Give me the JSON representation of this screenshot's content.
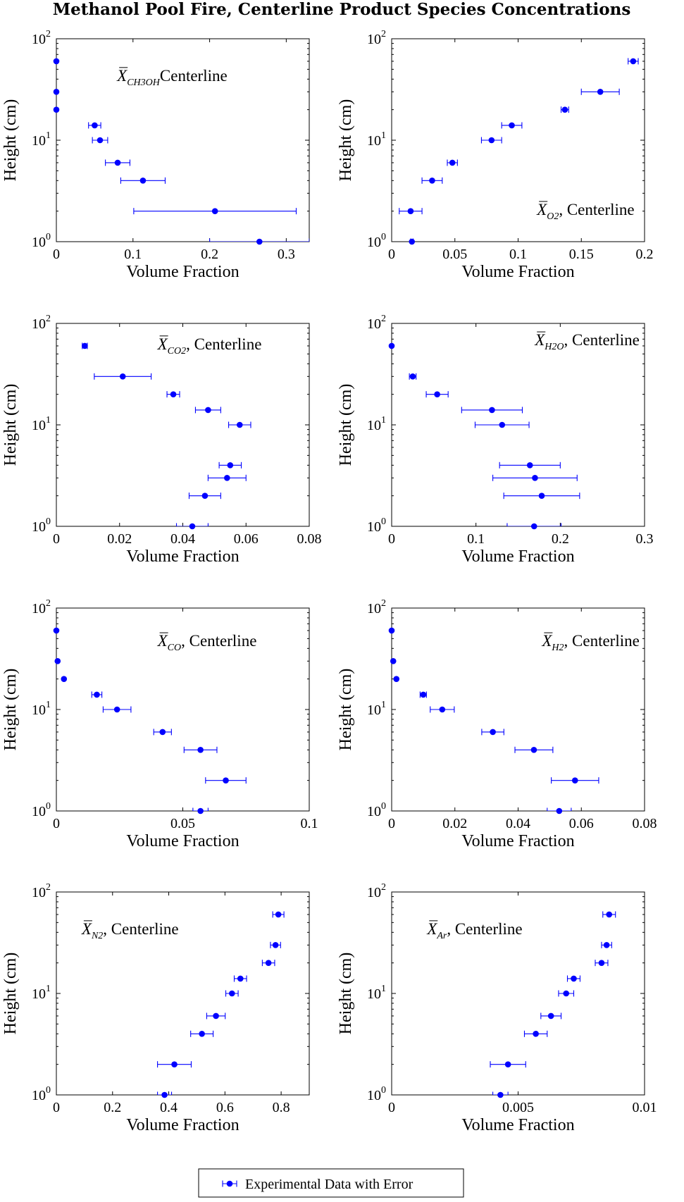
{
  "title": "Methanol Pool Fire, Centerline Product Species Concentrations",
  "legend": {
    "label": "Experimental Data with Error",
    "color": "#0000FF"
  },
  "chart_data": [
    {
      "type": "scatter",
      "annotation": {
        "sym": "X",
        "sub": "CH3OH",
        "text": "Centerline"
      },
      "xlabel": "Volume Fraction",
      "ylabel": "Height (cm)",
      "xlim": [
        0,
        0.33
      ],
      "ylim": [
        1,
        100
      ],
      "yscale": "log",
      "grid": false,
      "xticks": [
        0,
        0.1,
        0.2,
        0.3
      ],
      "xticklabels": [
        "0",
        "0.1",
        "0.2",
        "0.3"
      ],
      "points": [
        {
          "x": 0.265,
          "y": 1,
          "xerr": 0.065
        },
        {
          "x": 0.207,
          "y": 2,
          "xerr": 0.106
        },
        {
          "x": 0.113,
          "y": 4,
          "xerr": 0.029
        },
        {
          "x": 0.08,
          "y": 6,
          "xerr": 0.016
        },
        {
          "x": 0.057,
          "y": 10,
          "xerr": 0.01
        },
        {
          "x": 0.05,
          "y": 14,
          "xerr": 0.008
        },
        {
          "x": 0.0,
          "y": 20,
          "xerr": 0
        },
        {
          "x": 0.0,
          "y": 30,
          "xerr": 0
        },
        {
          "x": 0.0,
          "y": 60,
          "xerr": 0
        }
      ]
    },
    {
      "type": "scatter",
      "annotation": {
        "sym": "X",
        "sub": "O2",
        "text": ", Centerline"
      },
      "xlabel": "Volume Fraction",
      "ylabel": "Height (cm)",
      "xlim": [
        0,
        0.2
      ],
      "ylim": [
        1,
        100
      ],
      "yscale": "log",
      "grid": false,
      "xticks": [
        0,
        0.05,
        0.1,
        0.15,
        0.2
      ],
      "xticklabels": [
        "0",
        "0.05",
        "0.1",
        "0.15",
        "0.2"
      ],
      "points": [
        {
          "x": 0.016,
          "y": 1,
          "xerr": 0.001
        },
        {
          "x": 0.015,
          "y": 2,
          "xerr": 0.009
        },
        {
          "x": 0.032,
          "y": 4,
          "xerr": 0.008
        },
        {
          "x": 0.048,
          "y": 6,
          "xerr": 0.004
        },
        {
          "x": 0.079,
          "y": 10,
          "xerr": 0.008
        },
        {
          "x": 0.095,
          "y": 14,
          "xerr": 0.008
        },
        {
          "x": 0.137,
          "y": 20,
          "xerr": 0.003
        },
        {
          "x": 0.165,
          "y": 30,
          "xerr": 0.015
        },
        {
          "x": 0.191,
          "y": 60,
          "xerr": 0.004
        }
      ]
    },
    {
      "type": "scatter",
      "annotation": {
        "sym": "X",
        "sub": "CO2",
        "text": ", Centerline"
      },
      "xlabel": "Volume Fraction",
      "ylabel": "Height (cm)",
      "xlim": [
        0,
        0.08
      ],
      "ylim": [
        1,
        100
      ],
      "yscale": "log",
      "grid": false,
      "xticks": [
        0,
        0.02,
        0.04,
        0.06,
        0.08
      ],
      "xticklabels": [
        "0",
        "0.02",
        "0.04",
        "0.06",
        "0.08"
      ],
      "points": [
        {
          "x": 0.043,
          "y": 1,
          "xerr": 0.005
        },
        {
          "x": 0.047,
          "y": 2,
          "xerr": 0.005
        },
        {
          "x": 0.054,
          "y": 3,
          "xerr": 0.006
        },
        {
          "x": 0.055,
          "y": 4,
          "xerr": 0.0035
        },
        {
          "x": 0.058,
          "y": 10,
          "xerr": 0.0035
        },
        {
          "x": 0.048,
          "y": 14,
          "xerr": 0.004
        },
        {
          "x": 0.037,
          "y": 20,
          "xerr": 0.002
        },
        {
          "x": 0.021,
          "y": 30,
          "xerr": 0.009
        },
        {
          "x": 0.009,
          "y": 60,
          "xerr": 0.0008
        }
      ]
    },
    {
      "type": "scatter",
      "annotation": {
        "sym": "X",
        "sub": "H2O",
        "text": ", Centerline"
      },
      "xlabel": "Volume Fraction",
      "ylabel": "Height (cm)",
      "xlim": [
        0,
        0.3
      ],
      "ylim": [
        1,
        100
      ],
      "yscale": "log",
      "grid": false,
      "xticks": [
        0,
        0.1,
        0.2,
        0.3
      ],
      "xticklabels": [
        "0",
        "0.1",
        "0.2",
        "0.3"
      ],
      "points": [
        {
          "x": 0.169,
          "y": 1,
          "xerr": 0.032
        },
        {
          "x": 0.178,
          "y": 2,
          "xerr": 0.045
        },
        {
          "x": 0.17,
          "y": 3,
          "xerr": 0.05
        },
        {
          "x": 0.164,
          "y": 4,
          "xerr": 0.036
        },
        {
          "x": 0.131,
          "y": 10,
          "xerr": 0.032
        },
        {
          "x": 0.119,
          "y": 14,
          "xerr": 0.036
        },
        {
          "x": 0.054,
          "y": 20,
          "xerr": 0.013
        },
        {
          "x": 0.025,
          "y": 30,
          "xerr": 0.004
        },
        {
          "x": 0.0,
          "y": 60,
          "xerr": 0
        }
      ]
    },
    {
      "type": "scatter",
      "annotation": {
        "sym": "X",
        "sub": "CO",
        "text": ", Centerline"
      },
      "xlabel": "Volume Fraction",
      "ylabel": "Height (cm)",
      "xlim": [
        0,
        0.1
      ],
      "ylim": [
        1,
        100
      ],
      "yscale": "log",
      "grid": false,
      "xticks": [
        0,
        0.05,
        0.1
      ],
      "xticklabels": [
        "0",
        "0.05",
        "0.1"
      ],
      "points": [
        {
          "x": 0.057,
          "y": 1,
          "xerr": 0.003
        },
        {
          "x": 0.067,
          "y": 2,
          "xerr": 0.008
        },
        {
          "x": 0.057,
          "y": 4,
          "xerr": 0.0065
        },
        {
          "x": 0.042,
          "y": 6,
          "xerr": 0.0035
        },
        {
          "x": 0.024,
          "y": 10,
          "xerr": 0.0055
        },
        {
          "x": 0.016,
          "y": 14,
          "xerr": 0.002
        },
        {
          "x": 0.003,
          "y": 20,
          "xerr": 0
        },
        {
          "x": 0.0005,
          "y": 30,
          "xerr": 0
        },
        {
          "x": 0.0,
          "y": 60,
          "xerr": 0
        }
      ]
    },
    {
      "type": "scatter",
      "annotation": {
        "sym": "X",
        "sub": "H2",
        "text": ", Centerline"
      },
      "xlabel": "Volume Fraction",
      "ylabel": "Height (cm)",
      "xlim": [
        0,
        0.08
      ],
      "ylim": [
        1,
        100
      ],
      "yscale": "log",
      "grid": false,
      "xticks": [
        0,
        0.02,
        0.04,
        0.06,
        0.08
      ],
      "xticklabels": [
        "0",
        "0.02",
        "0.04",
        "0.06",
        "0.08"
      ],
      "points": [
        {
          "x": 0.053,
          "y": 1,
          "xerr": 0.0038
        },
        {
          "x": 0.058,
          "y": 2,
          "xerr": 0.0075
        },
        {
          "x": 0.045,
          "y": 4,
          "xerr": 0.006
        },
        {
          "x": 0.032,
          "y": 6,
          "xerr": 0.0035
        },
        {
          "x": 0.016,
          "y": 10,
          "xerr": 0.0038
        },
        {
          "x": 0.01,
          "y": 14,
          "xerr": 0.001
        },
        {
          "x": 0.0015,
          "y": 20,
          "xerr": 0
        },
        {
          "x": 0.0005,
          "y": 30,
          "xerr": 0
        },
        {
          "x": 0.0,
          "y": 60,
          "xerr": 0
        }
      ]
    },
    {
      "type": "scatter",
      "annotation": {
        "sym": "X",
        "sub": "N2",
        "text": ", Centerline"
      },
      "xlabel": "Volume Fraction",
      "ylabel": "Height (cm)",
      "xlim": [
        0,
        0.9
      ],
      "ylim": [
        1,
        100
      ],
      "yscale": "log",
      "grid": false,
      "xticks": [
        0,
        0.2,
        0.4,
        0.6,
        0.8
      ],
      "xticklabels": [
        "0",
        "0.2",
        "0.4",
        "0.6",
        "0.8"
      ],
      "points": [
        {
          "x": 0.385,
          "y": 1,
          "xerr": 0.025
        },
        {
          "x": 0.42,
          "y": 2,
          "xerr": 0.06
        },
        {
          "x": 0.518,
          "y": 4,
          "xerr": 0.04
        },
        {
          "x": 0.568,
          "y": 6,
          "xerr": 0.033
        },
        {
          "x": 0.625,
          "y": 10,
          "xerr": 0.022
        },
        {
          "x": 0.655,
          "y": 14,
          "xerr": 0.022
        },
        {
          "x": 0.755,
          "y": 20,
          "xerr": 0.022
        },
        {
          "x": 0.78,
          "y": 30,
          "xerr": 0.018
        },
        {
          "x": 0.79,
          "y": 60,
          "xerr": 0.02
        }
      ]
    },
    {
      "type": "scatter",
      "annotation": {
        "sym": "X",
        "sub": "Ar",
        "text": ", Centerline"
      },
      "xlabel": "Volume Fraction",
      "ylabel": "Height (cm)",
      "xlim": [
        0,
        0.01
      ],
      "ylim": [
        1,
        100
      ],
      "yscale": "log",
      "grid": false,
      "xticks": [
        0,
        0.005,
        0.01
      ],
      "xticklabels": [
        "0",
        "0.005",
        "0.01"
      ],
      "points": [
        {
          "x": 0.0043,
          "y": 1,
          "xerr": 0.0003
        },
        {
          "x": 0.0046,
          "y": 2,
          "xerr": 0.0007
        },
        {
          "x": 0.0057,
          "y": 4,
          "xerr": 0.00045
        },
        {
          "x": 0.0063,
          "y": 6,
          "xerr": 0.0004
        },
        {
          "x": 0.0069,
          "y": 10,
          "xerr": 0.0003
        },
        {
          "x": 0.0072,
          "y": 14,
          "xerr": 0.00025
        },
        {
          "x": 0.0083,
          "y": 20,
          "xerr": 0.00025
        },
        {
          "x": 0.0085,
          "y": 30,
          "xerr": 0.0002
        },
        {
          "x": 0.0086,
          "y": 60,
          "xerr": 0.00025
        }
      ]
    }
  ]
}
